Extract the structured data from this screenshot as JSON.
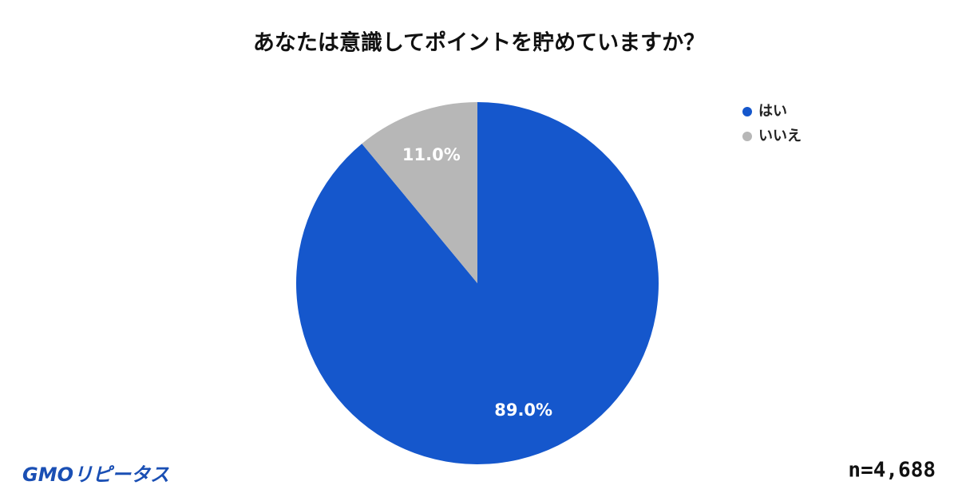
{
  "chart_data": {
    "type": "pie",
    "title": "あなたは意識してポイントを貯めていますか？",
    "categories": [
      "はい",
      "いいえ"
    ],
    "values": [
      89,
      11
    ],
    "value_labels": [
      "89.0%",
      "11.0%"
    ],
    "colors": [
      "#1557cc",
      "#b7b7b7"
    ],
    "legend": "top-right",
    "annotation": "n=4,688",
    "logo": "GMOリピータス"
  }
}
